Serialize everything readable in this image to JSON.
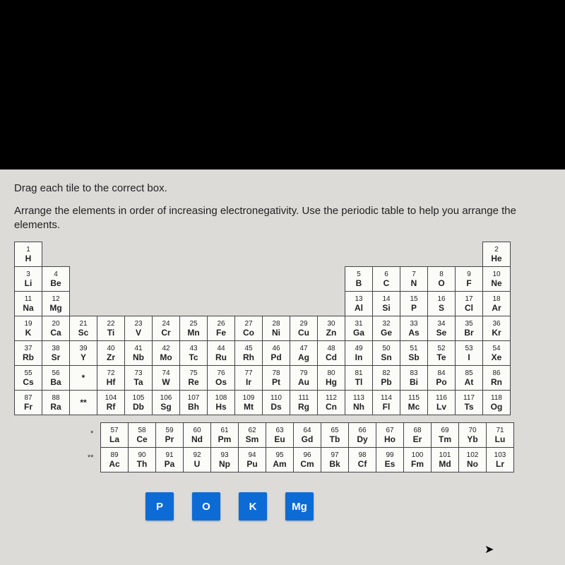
{
  "instruction1": "Drag each tile to the correct box.",
  "instruction2": "Arrange the elements in order of increasing electronegativity. Use the periodic table to help you arrange the elements.",
  "tile_color": "#0d6bd6",
  "tiles": [
    "P",
    "O",
    "K",
    "Mg"
  ],
  "main_rows": [
    [
      {
        "n": "1",
        "s": "H"
      },
      null,
      null,
      null,
      null,
      null,
      null,
      null,
      null,
      null,
      null,
      null,
      null,
      null,
      null,
      null,
      null,
      {
        "n": "2",
        "s": "He"
      }
    ],
    [
      {
        "n": "3",
        "s": "Li"
      },
      {
        "n": "4",
        "s": "Be"
      },
      null,
      null,
      null,
      null,
      null,
      null,
      null,
      null,
      null,
      null,
      {
        "n": "5",
        "s": "B"
      },
      {
        "n": "6",
        "s": "C"
      },
      {
        "n": "7",
        "s": "N"
      },
      {
        "n": "8",
        "s": "O"
      },
      {
        "n": "9",
        "s": "F"
      },
      {
        "n": "10",
        "s": "Ne"
      }
    ],
    [
      {
        "n": "11",
        "s": "Na"
      },
      {
        "n": "12",
        "s": "Mg"
      },
      null,
      null,
      null,
      null,
      null,
      null,
      null,
      null,
      null,
      null,
      {
        "n": "13",
        "s": "Al"
      },
      {
        "n": "14",
        "s": "Si"
      },
      {
        "n": "15",
        "s": "P"
      },
      {
        "n": "16",
        "s": "S"
      },
      {
        "n": "17",
        "s": "Cl"
      },
      {
        "n": "18",
        "s": "Ar"
      }
    ],
    [
      {
        "n": "19",
        "s": "K"
      },
      {
        "n": "20",
        "s": "Ca"
      },
      {
        "n": "21",
        "s": "Sc"
      },
      {
        "n": "22",
        "s": "Ti"
      },
      {
        "n": "23",
        "s": "V"
      },
      {
        "n": "24",
        "s": "Cr"
      },
      {
        "n": "25",
        "s": "Mn"
      },
      {
        "n": "26",
        "s": "Fe"
      },
      {
        "n": "27",
        "s": "Co"
      },
      {
        "n": "28",
        "s": "Ni"
      },
      {
        "n": "29",
        "s": "Cu"
      },
      {
        "n": "30",
        "s": "Zn"
      },
      {
        "n": "31",
        "s": "Ga"
      },
      {
        "n": "32",
        "s": "Ge"
      },
      {
        "n": "33",
        "s": "As"
      },
      {
        "n": "34",
        "s": "Se"
      },
      {
        "n": "35",
        "s": "Br"
      },
      {
        "n": "36",
        "s": "Kr"
      }
    ],
    [
      {
        "n": "37",
        "s": "Rb"
      },
      {
        "n": "38",
        "s": "Sr"
      },
      {
        "n": "39",
        "s": "Y"
      },
      {
        "n": "40",
        "s": "Zr"
      },
      {
        "n": "41",
        "s": "Nb"
      },
      {
        "n": "42",
        "s": "Mo"
      },
      {
        "n": "43",
        "s": "Tc"
      },
      {
        "n": "44",
        "s": "Ru"
      },
      {
        "n": "45",
        "s": "Rh"
      },
      {
        "n": "46",
        "s": "Pd"
      },
      {
        "n": "47",
        "s": "Ag"
      },
      {
        "n": "48",
        "s": "Cd"
      },
      {
        "n": "49",
        "s": "In"
      },
      {
        "n": "50",
        "s": "Sn"
      },
      {
        "n": "51",
        "s": "Sb"
      },
      {
        "n": "52",
        "s": "Te"
      },
      {
        "n": "53",
        "s": "I"
      },
      {
        "n": "54",
        "s": "Xe"
      }
    ],
    [
      {
        "n": "55",
        "s": "Cs"
      },
      {
        "n": "56",
        "s": "Ba"
      },
      {
        "n": "",
        "s": "*"
      },
      {
        "n": "72",
        "s": "Hf"
      },
      {
        "n": "73",
        "s": "Ta"
      },
      {
        "n": "74",
        "s": "W"
      },
      {
        "n": "75",
        "s": "Re"
      },
      {
        "n": "76",
        "s": "Os"
      },
      {
        "n": "77",
        "s": "Ir"
      },
      {
        "n": "78",
        "s": "Pt"
      },
      {
        "n": "79",
        "s": "Au"
      },
      {
        "n": "80",
        "s": "Hg"
      },
      {
        "n": "81",
        "s": "Tl"
      },
      {
        "n": "82",
        "s": "Pb"
      },
      {
        "n": "83",
        "s": "Bi"
      },
      {
        "n": "84",
        "s": "Po"
      },
      {
        "n": "85",
        "s": "At"
      },
      {
        "n": "86",
        "s": "Rn"
      }
    ],
    [
      {
        "n": "87",
        "s": "Fr"
      },
      {
        "n": "88",
        "s": "Ra"
      },
      {
        "n": "",
        "s": "**"
      },
      {
        "n": "104",
        "s": "Rf"
      },
      {
        "n": "105",
        "s": "Db"
      },
      {
        "n": "106",
        "s": "Sg"
      },
      {
        "n": "107",
        "s": "Bh"
      },
      {
        "n": "108",
        "s": "Hs"
      },
      {
        "n": "109",
        "s": "Mt"
      },
      {
        "n": "110",
        "s": "Ds"
      },
      {
        "n": "111",
        "s": "Rg"
      },
      {
        "n": "112",
        "s": "Cn"
      },
      {
        "n": "113",
        "s": "Nh"
      },
      {
        "n": "114",
        "s": "Fl"
      },
      {
        "n": "115",
        "s": "Mc"
      },
      {
        "n": "116",
        "s": "Lv"
      },
      {
        "n": "117",
        "s": "Ts"
      },
      {
        "n": "118",
        "s": "Og"
      }
    ]
  ],
  "f_rows": [
    [
      {
        "n": "57",
        "s": "La"
      },
      {
        "n": "58",
        "s": "Ce"
      },
      {
        "n": "59",
        "s": "Pr"
      },
      {
        "n": "60",
        "s": "Nd"
      },
      {
        "n": "61",
        "s": "Pm"
      },
      {
        "n": "62",
        "s": "Sm"
      },
      {
        "n": "63",
        "s": "Eu"
      },
      {
        "n": "64",
        "s": "Gd"
      },
      {
        "n": "65",
        "s": "Tb"
      },
      {
        "n": "66",
        "s": "Dy"
      },
      {
        "n": "67",
        "s": "Ho"
      },
      {
        "n": "68",
        "s": "Er"
      },
      {
        "n": "69",
        "s": "Tm"
      },
      {
        "n": "70",
        "s": "Yb"
      },
      {
        "n": "71",
        "s": "Lu"
      }
    ],
    [
      {
        "n": "89",
        "s": "Ac"
      },
      {
        "n": "90",
        "s": "Th"
      },
      {
        "n": "91",
        "s": "Pa"
      },
      {
        "n": "92",
        "s": "U"
      },
      {
        "n": "93",
        "s": "Np"
      },
      {
        "n": "94",
        "s": "Pu"
      },
      {
        "n": "95",
        "s": "Am"
      },
      {
        "n": "96",
        "s": "Cm"
      },
      {
        "n": "97",
        "s": "Bk"
      },
      {
        "n": "98",
        "s": "Cf"
      },
      {
        "n": "99",
        "s": "Es"
      },
      {
        "n": "100",
        "s": "Fm"
      },
      {
        "n": "101",
        "s": "Md"
      },
      {
        "n": "102",
        "s": "No"
      },
      {
        "n": "103",
        "s": "Lr"
      }
    ]
  ],
  "f_markers": [
    "*",
    "**"
  ]
}
